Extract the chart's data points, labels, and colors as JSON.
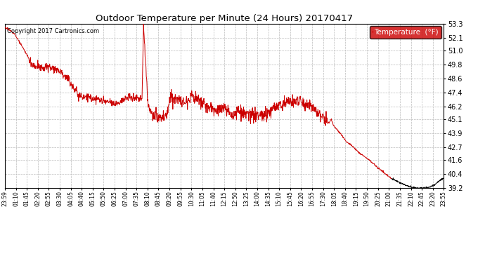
{
  "title": "Outdoor Temperature per Minute (24 Hours) 20170417",
  "copyright_text": "Copyright 2017 Cartronics.com",
  "legend_label": "Temperature  (°F)",
  "line_color_red": "#cc0000",
  "line_color_black": "#000000",
  "background_color": "#ffffff",
  "grid_color": "#bbbbbb",
  "ylim": [
    39.2,
    53.3
  ],
  "yticks": [
    39.2,
    40.4,
    41.6,
    42.7,
    43.9,
    45.1,
    46.2,
    47.4,
    48.6,
    49.8,
    51.0,
    52.1,
    53.3
  ],
  "x_labels": [
    "23:59",
    "01:10",
    "01:45",
    "02:20",
    "02:55",
    "03:30",
    "04:05",
    "04:40",
    "05:15",
    "05:50",
    "06:25",
    "07:00",
    "07:35",
    "08:10",
    "08:45",
    "09:20",
    "09:55",
    "10:30",
    "11:05",
    "11:40",
    "12:15",
    "12:50",
    "13:25",
    "14:00",
    "14:35",
    "15:10",
    "15:45",
    "16:20",
    "16:55",
    "17:30",
    "18:05",
    "18:40",
    "19:15",
    "19:50",
    "20:25",
    "21:00",
    "21:35",
    "22:10",
    "22:45",
    "23:20",
    "23:55"
  ],
  "legend_bg": "#cc0000",
  "legend_text_color": "#ffffff",
  "split_minute": 1270,
  "keypoints": [
    [
      0,
      53.0
    ],
    [
      30,
      52.5
    ],
    [
      60,
      51.2
    ],
    [
      90,
      49.8
    ],
    [
      120,
      49.5
    ],
    [
      150,
      49.6
    ],
    [
      180,
      49.3
    ],
    [
      210,
      48.5
    ],
    [
      240,
      47.2
    ],
    [
      270,
      47.0
    ],
    [
      300,
      46.8
    ],
    [
      330,
      46.6
    ],
    [
      360,
      46.4
    ],
    [
      390,
      46.8
    ],
    [
      420,
      47.0
    ],
    [
      450,
      46.8
    ],
    [
      455,
      53.2
    ],
    [
      470,
      46.2
    ],
    [
      490,
      45.3
    ],
    [
      510,
      45.2
    ],
    [
      530,
      45.3
    ],
    [
      545,
      47.2
    ],
    [
      555,
      46.8
    ],
    [
      565,
      47.0
    ],
    [
      580,
      46.5
    ],
    [
      600,
      46.8
    ],
    [
      615,
      47.2
    ],
    [
      630,
      46.8
    ],
    [
      645,
      46.5
    ],
    [
      660,
      46.2
    ],
    [
      675,
      46.0
    ],
    [
      690,
      45.8
    ],
    [
      705,
      46.0
    ],
    [
      720,
      45.9
    ],
    [
      735,
      45.7
    ],
    [
      750,
      45.5
    ],
    [
      765,
      45.8
    ],
    [
      780,
      45.6
    ],
    [
      795,
      45.4
    ],
    [
      810,
      45.5
    ],
    [
      825,
      45.3
    ],
    [
      840,
      45.5
    ],
    [
      855,
      45.4
    ],
    [
      870,
      45.8
    ],
    [
      885,
      46.0
    ],
    [
      900,
      46.3
    ],
    [
      915,
      46.5
    ],
    [
      930,
      46.7
    ],
    [
      945,
      46.5
    ],
    [
      960,
      46.8
    ],
    [
      975,
      46.6
    ],
    [
      990,
      46.4
    ],
    [
      1005,
      46.2
    ],
    [
      1020,
      46.0
    ],
    [
      1035,
      45.5
    ],
    [
      1050,
      45.0
    ],
    [
      1065,
      44.8
    ],
    [
      1070,
      45.1
    ],
    [
      1080,
      44.5
    ],
    [
      1100,
      43.9
    ],
    [
      1120,
      43.2
    ],
    [
      1140,
      42.8
    ],
    [
      1160,
      42.3
    ],
    [
      1200,
      41.5
    ],
    [
      1240,
      40.6
    ],
    [
      1270,
      40.0
    ],
    [
      1300,
      39.6
    ],
    [
      1330,
      39.3
    ],
    [
      1355,
      39.2
    ],
    [
      1375,
      39.2
    ],
    [
      1395,
      39.3
    ],
    [
      1410,
      39.5
    ],
    [
      1425,
      39.8
    ],
    [
      1440,
      40.1
    ]
  ],
  "noise_std": 0.18,
  "noise_std_smooth": 0.04
}
